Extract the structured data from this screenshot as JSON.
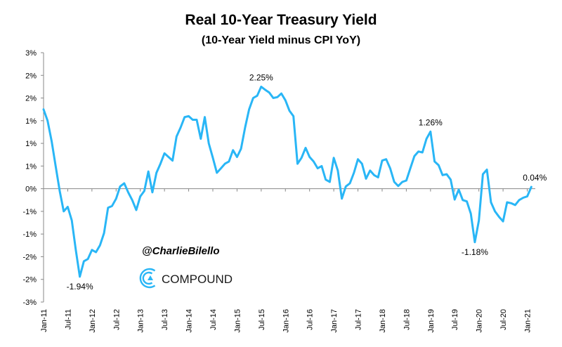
{
  "chart_data": {
    "type": "line",
    "title": "Real 10-Year Treasury  Yield",
    "subtitle": "(10-Year Yield minus CPI YoY)",
    "xlabel": "",
    "ylabel": "",
    "y_ticks": [
      {
        "value": 3,
        "label": "3%"
      },
      {
        "value": 2.5,
        "label": "2%"
      },
      {
        "value": 2,
        "label": "2%"
      },
      {
        "value": 1.5,
        "label": "1%"
      },
      {
        "value": 1,
        "label": "1%"
      },
      {
        "value": 0.5,
        "label": "1%"
      },
      {
        "value": 0,
        "label": "0%"
      },
      {
        "value": -0.5,
        "label": "-1%"
      },
      {
        "value": -1,
        "label": "-1%"
      },
      {
        "value": -1.5,
        "label": "-2%"
      },
      {
        "value": -2,
        "label": "-2%"
      },
      {
        "value": -2.5,
        "label": "-3%"
      }
    ],
    "ylim": [
      -2.5,
      3
    ],
    "x_ticks": [
      "Jan-11",
      "Jul-11",
      "Jan-12",
      "Jul-12",
      "Jan-13",
      "Jul-13",
      "Jan-14",
      "Jul-14",
      "Jan-15",
      "Jul-15",
      "Jan-16",
      "Jul-16",
      "Jan-17",
      "Jul-17",
      "Jan-18",
      "Jul-18",
      "Jan-19",
      "Jul-19",
      "Jan-20",
      "Jul-20",
      "Jan-21"
    ],
    "xlim": [
      "2011-01",
      "2021-03"
    ],
    "grid": false,
    "series": [
      {
        "color": "#29b6f6",
        "points": [
          [
            "2011-01",
            1.75
          ],
          [
            "2011-02",
            1.5
          ],
          [
            "2011-03",
            1.05
          ],
          [
            "2011-04",
            0.5
          ],
          [
            "2011-05",
            -0.05
          ],
          [
            "2011-06",
            -0.5
          ],
          [
            "2011-07",
            -0.4
          ],
          [
            "2011-08",
            -0.7
          ],
          [
            "2011-09",
            -1.35
          ],
          [
            "2011-10",
            -1.94
          ],
          [
            "2011-11",
            -1.6
          ],
          [
            "2011-12",
            -1.55
          ],
          [
            "2012-01",
            -1.35
          ],
          [
            "2012-02",
            -1.4
          ],
          [
            "2012-03",
            -1.25
          ],
          [
            "2012-04",
            -0.98
          ],
          [
            "2012-05",
            -0.42
          ],
          [
            "2012-06",
            -0.38
          ],
          [
            "2012-07",
            -0.22
          ],
          [
            "2012-08",
            0.05
          ],
          [
            "2012-09",
            0.12
          ],
          [
            "2012-10",
            -0.08
          ],
          [
            "2012-11",
            -0.25
          ],
          [
            "2012-12",
            -0.47
          ],
          [
            "2013-01",
            -0.17
          ],
          [
            "2013-02",
            -0.05
          ],
          [
            "2013-03",
            0.38
          ],
          [
            "2013-04",
            -0.08
          ],
          [
            "2013-05",
            0.35
          ],
          [
            "2013-06",
            0.55
          ],
          [
            "2013-07",
            0.78
          ],
          [
            "2013-08",
            0.7
          ],
          [
            "2013-09",
            0.62
          ],
          [
            "2013-10",
            1.15
          ],
          [
            "2013-11",
            1.35
          ],
          [
            "2013-12",
            1.58
          ],
          [
            "2014-01",
            1.6
          ],
          [
            "2014-02",
            1.52
          ],
          [
            "2014-03",
            1.52
          ],
          [
            "2014-04",
            1.1
          ],
          [
            "2014-05",
            1.58
          ],
          [
            "2014-06",
            1.0
          ],
          [
            "2014-07",
            0.68
          ],
          [
            "2014-08",
            0.35
          ],
          [
            "2014-09",
            0.45
          ],
          [
            "2014-10",
            0.55
          ],
          [
            "2014-11",
            0.6
          ],
          [
            "2014-12",
            0.85
          ],
          [
            "2015-01",
            0.7
          ],
          [
            "2015-02",
            0.88
          ],
          [
            "2015-03",
            1.35
          ],
          [
            "2015-04",
            1.75
          ],
          [
            "2015-05",
            2.0
          ],
          [
            "2015-06",
            2.05
          ],
          [
            "2015-07",
            2.25
          ],
          [
            "2015-08",
            2.18
          ],
          [
            "2015-09",
            2.12
          ],
          [
            "2015-10",
            2.0
          ],
          [
            "2015-11",
            2.02
          ],
          [
            "2015-12",
            2.1
          ],
          [
            "2016-01",
            1.95
          ],
          [
            "2016-02",
            1.72
          ],
          [
            "2016-03",
            1.6
          ],
          [
            "2016-04",
            0.55
          ],
          [
            "2016-05",
            0.68
          ],
          [
            "2016-06",
            0.9
          ],
          [
            "2016-07",
            0.7
          ],
          [
            "2016-08",
            0.6
          ],
          [
            "2016-09",
            0.45
          ],
          [
            "2016-10",
            0.5
          ],
          [
            "2016-11",
            0.2
          ],
          [
            "2016-12",
            0.15
          ],
          [
            "2017-01",
            0.68
          ],
          [
            "2017-02",
            0.4
          ],
          [
            "2017-03",
            -0.22
          ],
          [
            "2017-04",
            0.05
          ],
          [
            "2017-05",
            0.12
          ],
          [
            "2017-06",
            0.35
          ],
          [
            "2017-07",
            0.65
          ],
          [
            "2017-08",
            0.55
          ],
          [
            "2017-09",
            0.22
          ],
          [
            "2017-10",
            0.4
          ],
          [
            "2017-11",
            0.3
          ],
          [
            "2017-12",
            0.25
          ],
          [
            "2018-01",
            0.62
          ],
          [
            "2018-02",
            0.65
          ],
          [
            "2018-03",
            0.45
          ],
          [
            "2018-04",
            0.15
          ],
          [
            "2018-05",
            0.06
          ],
          [
            "2018-06",
            0.15
          ],
          [
            "2018-07",
            0.18
          ],
          [
            "2018-08",
            0.45
          ],
          [
            "2018-09",
            0.72
          ],
          [
            "2018-10",
            0.82
          ],
          [
            "2018-11",
            0.8
          ],
          [
            "2018-12",
            1.1
          ],
          [
            "2019-01",
            1.26
          ],
          [
            "2019-02",
            0.6
          ],
          [
            "2019-03",
            0.52
          ],
          [
            "2019-04",
            0.3
          ],
          [
            "2019-05",
            0.32
          ],
          [
            "2019-06",
            0.2
          ],
          [
            "2019-07",
            -0.24
          ],
          [
            "2019-08",
            -0.02
          ],
          [
            "2019-09",
            -0.25
          ],
          [
            "2019-10",
            -0.28
          ],
          [
            "2019-11",
            -0.55
          ],
          [
            "2019-12",
            -1.18
          ],
          [
            "2020-01",
            -0.7
          ],
          [
            "2020-02",
            0.32
          ],
          [
            "2020-03",
            0.42
          ],
          [
            "2020-04",
            -0.3
          ],
          [
            "2020-05",
            -0.5
          ],
          [
            "2020-06",
            -0.62
          ],
          [
            "2020-07",
            -0.72
          ],
          [
            "2020-08",
            -0.3
          ],
          [
            "2020-09",
            -0.32
          ],
          [
            "2020-10",
            -0.36
          ],
          [
            "2020-11",
            -0.25
          ],
          [
            "2020-12",
            -0.2
          ],
          [
            "2021-01",
            -0.17
          ],
          [
            "2021-02",
            0.04
          ]
        ]
      }
    ],
    "annotations": [
      {
        "x": "2011-10",
        "y": -1.94,
        "label": "-1.94%",
        "position": "below"
      },
      {
        "x": "2015-07",
        "y": 2.25,
        "label": "2.25%",
        "position": "above"
      },
      {
        "x": "2019-01",
        "y": 1.26,
        "label": "1.26%",
        "position": "above"
      },
      {
        "x": "2019-12",
        "y": -1.18,
        "label": "-1.18%",
        "position": "below"
      },
      {
        "x": "2021-02",
        "y": 0.04,
        "label": "0.04%",
        "position": "above-right"
      }
    ]
  },
  "watermark": {
    "handle": "@CharlieBilello",
    "brand": "COMPOUND",
    "brand_color": "#29b6f6"
  }
}
